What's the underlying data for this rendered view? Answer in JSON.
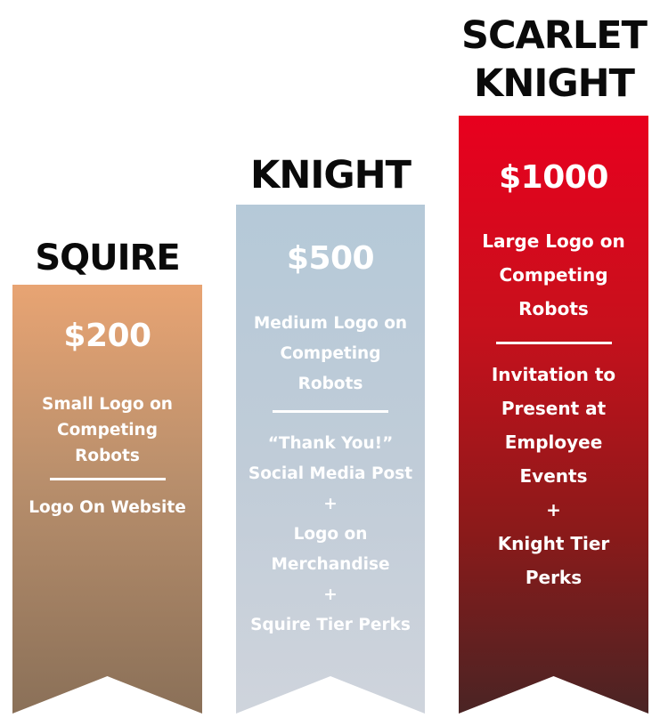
{
  "tiers": [
    {
      "name": "SQUIRE",
      "price": "$200",
      "perk_primary": "Small Logo on\nCompeting\nRobots",
      "perk_secondary": "Logo On Website",
      "colors": {
        "top": "#e8a473",
        "bottom": "#8a7058"
      }
    },
    {
      "name": "KNIGHT",
      "price": "$500",
      "perk_primary": "Medium Logo on\nCompeting\nRobots",
      "perk_secondary": "“Thank You!”\nSocial Media Post\n+\nLogo on\nMerchandise\n+\nSquire Tier Perks",
      "colors": {
        "top": "#b5c9d8",
        "bottom": "#cfd4dc"
      }
    },
    {
      "name": "SCARLET\nKNIGHT",
      "price": "$1000",
      "perk_primary": "Large Logo on\nCompeting\nRobots",
      "perk_secondary": "Invitation to\nPresent at\nEmployee\nEvents\n+\nKnight Tier\nPerks",
      "colors": {
        "top": "#e8001e",
        "bottom": "#4a2424"
      }
    }
  ]
}
